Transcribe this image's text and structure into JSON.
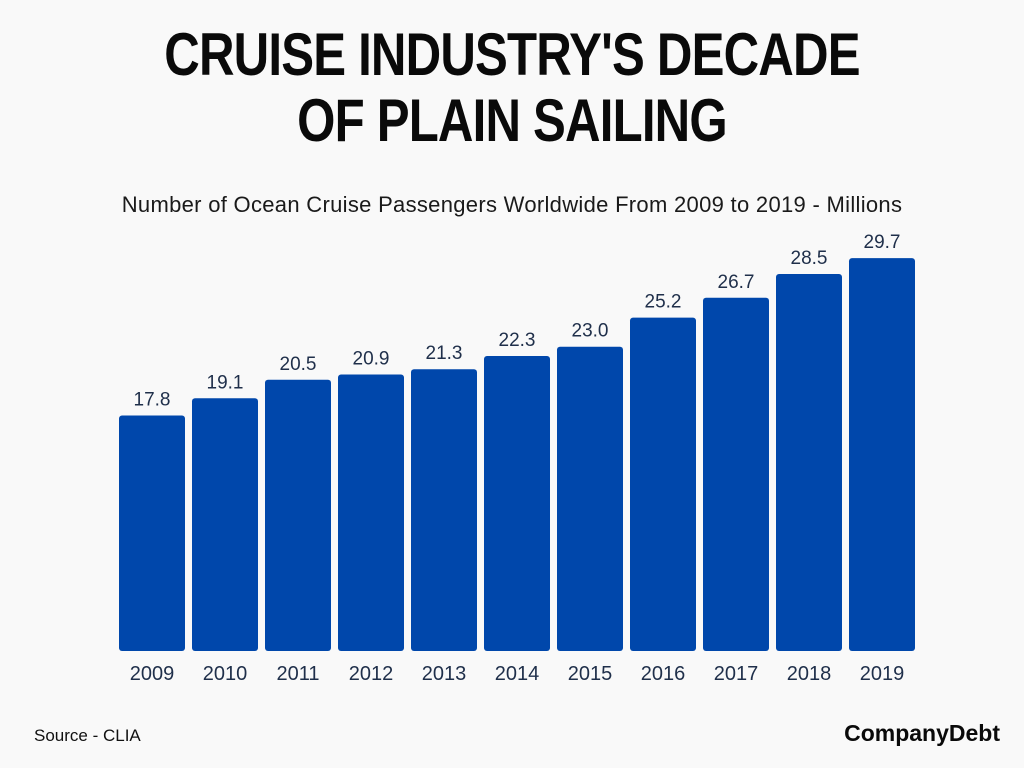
{
  "title_lines": [
    "CRUISE INDUSTRY'S DECADE",
    "OF PLAIN SAILING"
  ],
  "subtitle": "Number of Ocean Cruise Passengers Worldwide From 2009 to 2019 - Millions",
  "source": "Source - CLIA",
  "brand": "CompanyDebt",
  "colors": {
    "bar": "#0047ab",
    "label": "#1f2f4a",
    "background": "#f9f9f9"
  },
  "chart_data": {
    "type": "bar",
    "categories": [
      "2009",
      "2010",
      "2011",
      "2012",
      "2013",
      "2014",
      "2015",
      "2016",
      "2017",
      "2018",
      "2019"
    ],
    "values": [
      17.8,
      19.1,
      20.5,
      20.9,
      21.3,
      22.3,
      23.0,
      25.2,
      26.7,
      28.5,
      29.7
    ],
    "value_labels": [
      "17.8",
      "19.1",
      "20.5",
      "20.9",
      "21.3",
      "22.3",
      "23.0",
      "25.2",
      "26.7",
      "28.5",
      "29.7"
    ],
    "title": "CRUISE INDUSTRY'S DECADE OF PLAIN SAILING",
    "subtitle": "Number of Ocean Cruise Passengers Worldwide From 2009 to 2019 - Millions",
    "xlabel": "",
    "ylabel": "",
    "ylim": [
      0,
      30
    ],
    "grid": false,
    "legend": "none"
  }
}
